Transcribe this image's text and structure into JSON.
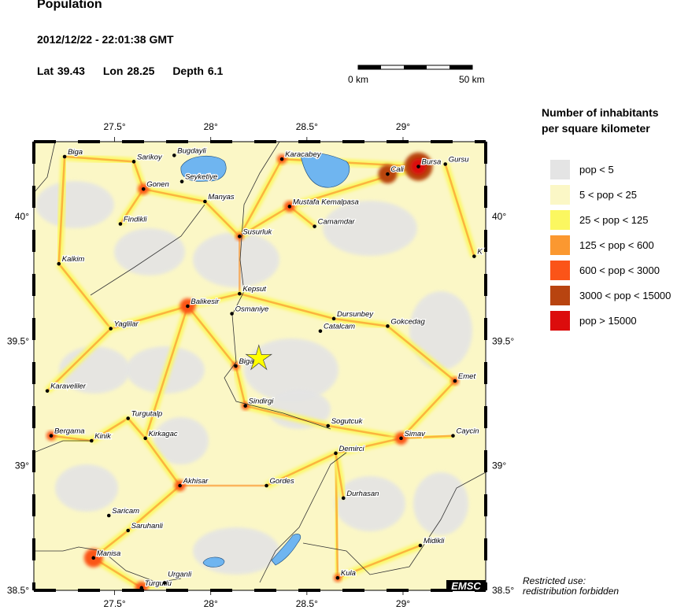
{
  "header": {
    "title": "Population",
    "datetime": "2012/12/22 - 22:01:38 GMT",
    "lat_label": "Lat 39.43",
    "lon_label": "Lon  28.25",
    "depth_label": "Depth  6.1"
  },
  "scale_bar": {
    "start_label": "0 km",
    "end_label": "50 km"
  },
  "legend": {
    "title_line1": "Number of inhabitants",
    "title_line2": "per square kilometer",
    "items": [
      {
        "label": "pop < 5",
        "color": "#e4e4e4"
      },
      {
        "label": "5 < pop < 25",
        "color": "#fbf7c6"
      },
      {
        "label": "25 < pop < 125",
        "color": "#fbf760"
      },
      {
        "label": "125 < pop < 600",
        "color": "#fb9830"
      },
      {
        "label": "600 < pop < 3000",
        "color": "#fb5418"
      },
      {
        "label": "3000 < pop < 15000",
        "color": "#b84410"
      },
      {
        "label": "pop > 15000",
        "color": "#dc0c0c"
      }
    ]
  },
  "map": {
    "lon_range": [
      27.08,
      29.43
    ],
    "lat_range": [
      38.5,
      40.3
    ],
    "lon_ticks": [
      {
        "v": 27.5,
        "label": "27.5°"
      },
      {
        "v": 28,
        "label": "28°"
      },
      {
        "v": 28.5,
        "label": "28.5°"
      },
      {
        "v": 29,
        "label": "29°"
      }
    ],
    "lat_ticks": [
      {
        "v": 40,
        "label": "40°"
      },
      {
        "v": 39.5,
        "label": "39.5°"
      },
      {
        "v": 39,
        "label": "39°"
      },
      {
        "v": 38.5,
        "label": "38.5°"
      }
    ],
    "epicenter": {
      "lon": 28.25,
      "lat": 39.43,
      "color": "#ffff00"
    },
    "water_color": "#6fb5f0",
    "cities": [
      {
        "name": "Biga",
        "lon": 27.24,
        "lat": 40.24
      },
      {
        "name": "Sarikoy",
        "lon": 27.6,
        "lat": 40.22
      },
      {
        "name": "Bugdayli",
        "lon": 27.81,
        "lat": 40.245
      },
      {
        "name": "Seyketiye",
        "lon": 27.85,
        "lat": 40.14
      },
      {
        "name": "Gonen",
        "lon": 27.65,
        "lat": 40.11
      },
      {
        "name": "Manyas",
        "lon": 27.97,
        "lat": 40.06
      },
      {
        "name": "Findikli",
        "lon": 27.53,
        "lat": 39.97
      },
      {
        "name": "Kalkim",
        "lon": 27.21,
        "lat": 39.81
      },
      {
        "name": "Susurluk",
        "lon": 28.15,
        "lat": 39.92
      },
      {
        "name": "Karacabey",
        "lon": 28.37,
        "lat": 40.23
      },
      {
        "name": "Mustafa Kemalpasa",
        "lon": 28.41,
        "lat": 40.04
      },
      {
        "name": "Camamdar",
        "lon": 28.54,
        "lat": 39.96
      },
      {
        "name": "Cali",
        "lon": 28.92,
        "lat": 40.17
      },
      {
        "name": "Bursa",
        "lon": 29.08,
        "lat": 40.2
      },
      {
        "name": "Gursu",
        "lon": 29.22,
        "lat": 40.21
      },
      {
        "name": "K",
        "lon": 29.37,
        "lat": 39.84
      },
      {
        "name": "Kepsut",
        "lon": 28.15,
        "lat": 39.69
      },
      {
        "name": "Balikesir",
        "lon": 27.88,
        "lat": 39.64
      },
      {
        "name": "Osmaniye",
        "lon": 28.11,
        "lat": 39.61
      },
      {
        "name": "Yaglilar",
        "lon": 27.48,
        "lat": 39.55
      },
      {
        "name": "Dursunbey",
        "lon": 28.64,
        "lat": 39.59
      },
      {
        "name": "Catalcam",
        "lon": 28.57,
        "lat": 39.54
      },
      {
        "name": "Gokcedag",
        "lon": 28.92,
        "lat": 39.56
      },
      {
        "name": "Bigadic",
        "lon": 28.13,
        "lat": 39.4
      },
      {
        "name": "Karaveliler",
        "lon": 27.15,
        "lat": 39.3
      },
      {
        "name": "Sindirgi",
        "lon": 28.18,
        "lat": 39.24
      },
      {
        "name": "Emet",
        "lon": 29.27,
        "lat": 39.34
      },
      {
        "name": "Sogutcuk",
        "lon": 28.61,
        "lat": 39.16
      },
      {
        "name": "Simav",
        "lon": 28.99,
        "lat": 39.11
      },
      {
        "name": "Caycin",
        "lon": 29.26,
        "lat": 39.12
      },
      {
        "name": "Turgutalp",
        "lon": 27.57,
        "lat": 39.19
      },
      {
        "name": "Bergama",
        "lon": 27.17,
        "lat": 39.12
      },
      {
        "name": "Kinik",
        "lon": 27.38,
        "lat": 39.1
      },
      {
        "name": "Kirkagac",
        "lon": 27.66,
        "lat": 39.11
      },
      {
        "name": "Demirci",
        "lon": 28.65,
        "lat": 39.05
      },
      {
        "name": "Akhisar",
        "lon": 27.84,
        "lat": 38.92
      },
      {
        "name": "Gordes",
        "lon": 28.29,
        "lat": 38.92
      },
      {
        "name": "Durhasan",
        "lon": 28.69,
        "lat": 38.87
      },
      {
        "name": "Saricam",
        "lon": 27.47,
        "lat": 38.8
      },
      {
        "name": "Saruhanli",
        "lon": 27.57,
        "lat": 38.74
      },
      {
        "name": "Midikli",
        "lon": 29.09,
        "lat": 38.68
      },
      {
        "name": "Manisa",
        "lon": 27.39,
        "lat": 38.63
      },
      {
        "name": "Turgutlu",
        "lon": 27.64,
        "lat": 38.51
      },
      {
        "name": "Urganli",
        "lon": 27.76,
        "lat": 38.53
      },
      {
        "name": "Kula",
        "lon": 28.66,
        "lat": 38.55
      }
    ],
    "logo": "EMSC"
  },
  "footer": {
    "line1": "Restricted use:",
    "line2": "redistribution forbidden"
  }
}
